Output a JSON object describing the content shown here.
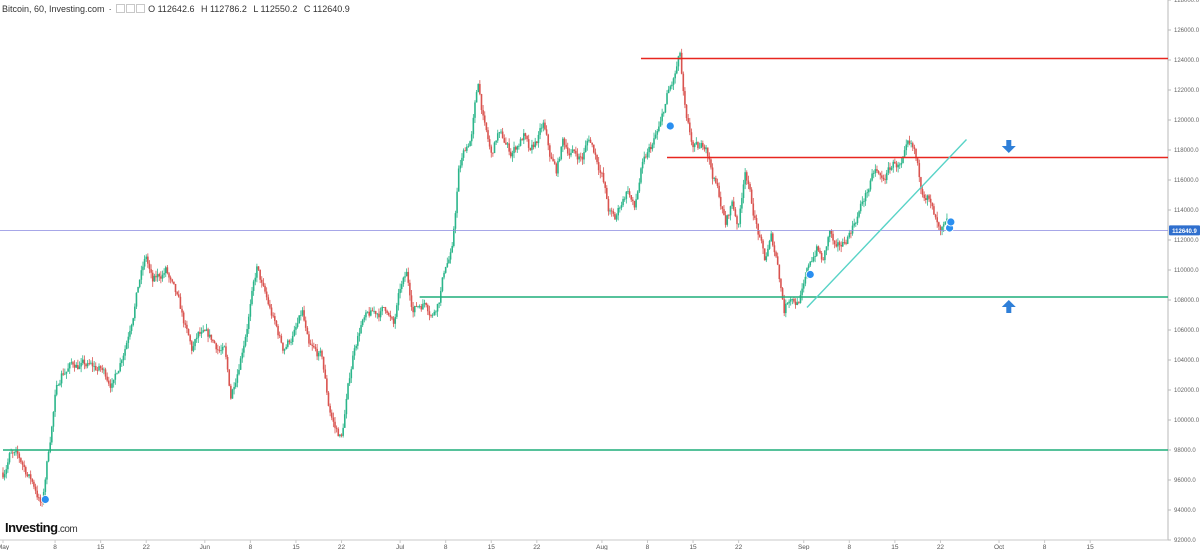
{
  "header": {
    "symbol": "Bitcoin, 60, Investing.com",
    "separator": "·",
    "open": "O 112642.6",
    "high": "H 112786.2",
    "low": "L 112550.2",
    "close": "C 112640.9"
  },
  "logo": {
    "main": "Investing",
    "suffix": ".com"
  },
  "colors": {
    "up": "#2bb58a",
    "down": "#d9534f",
    "resistance": "#e8261f",
    "support": "#1fae7a",
    "trendline": "#58d3c7",
    "price_line": "#8a8ae0",
    "price_badge": "#2f6fce",
    "arrow": "#2f7fd8",
    "marker": "#2a8ff0"
  },
  "chart_data": {
    "type": "candlestick",
    "timeframe": "60",
    "ylim": [
      92000,
      128000
    ],
    "y_ticks": [
      {
        "v": 92000,
        "label": "92000.0"
      },
      {
        "v": 94000,
        "label": "94000.0"
      },
      {
        "v": 96000,
        "label": "96000.0"
      },
      {
        "v": 98000,
        "label": "98000.0"
      },
      {
        "v": 100000,
        "label": "100000.0"
      },
      {
        "v": 102000,
        "label": "102000.0"
      },
      {
        "v": 104000,
        "label": "104000.0"
      },
      {
        "v": 106000,
        "label": "106000.0"
      },
      {
        "v": 108000,
        "label": "108000.0"
      },
      {
        "v": 110000,
        "label": "110000.0"
      },
      {
        "v": 112000,
        "label": "112000.0"
      },
      {
        "v": 114000,
        "label": "114000.0"
      },
      {
        "v": 116000,
        "label": "116000.0"
      },
      {
        "v": 118000,
        "label": "118000.0"
      },
      {
        "v": 120000,
        "label": "120000.0"
      },
      {
        "v": 122000,
        "label": "122000.0"
      },
      {
        "v": 124000,
        "label": "124000.0"
      },
      {
        "v": 126000,
        "label": "126000.0"
      },
      {
        "v": 128000,
        "label": "128000.0"
      }
    ],
    "x_ticks": [
      {
        "d": 0,
        "label": "May"
      },
      {
        "d": 8,
        "label": "8"
      },
      {
        "d": 15,
        "label": "15"
      },
      {
        "d": 22,
        "label": "22"
      },
      {
        "d": 31,
        "label": "Jun"
      },
      {
        "d": 38,
        "label": "8"
      },
      {
        "d": 45,
        "label": "15"
      },
      {
        "d": 52,
        "label": "22"
      },
      {
        "d": 61,
        "label": "Jul"
      },
      {
        "d": 68,
        "label": "8"
      },
      {
        "d": 75,
        "label": "15"
      },
      {
        "d": 82,
        "label": "22"
      },
      {
        "d": 92,
        "label": "Aug"
      },
      {
        "d": 99,
        "label": "8"
      },
      {
        "d": 106,
        "label": "15"
      },
      {
        "d": 113,
        "label": "22"
      },
      {
        "d": 123,
        "label": "Sep"
      },
      {
        "d": 130,
        "label": "8"
      },
      {
        "d": 137,
        "label": "15"
      },
      {
        "d": 144,
        "label": "22"
      },
      {
        "d": 153,
        "label": "Oct"
      },
      {
        "d": 160,
        "label": "8"
      },
      {
        "d": 167,
        "label": "15"
      }
    ],
    "price_path": [
      [
        0,
        96500
      ],
      [
        1,
        97800
      ],
      [
        3,
        97000
      ],
      [
        5,
        95500
      ],
      [
        6,
        94200
      ],
      [
        7,
        98000
      ],
      [
        8,
        101500
      ],
      [
        9,
        103200
      ],
      [
        11,
        103800
      ],
      [
        13,
        103500
      ],
      [
        15,
        103300
      ],
      [
        17,
        102500
      ],
      [
        19,
        105500
      ],
      [
        20,
        107500
      ],
      [
        21,
        109500
      ],
      [
        22,
        110800
      ],
      [
        23,
        109000
      ],
      [
        25,
        110000
      ],
      [
        27,
        107500
      ],
      [
        29,
        104500
      ],
      [
        30,
        105500
      ],
      [
        32,
        105200
      ],
      [
        34,
        104500
      ],
      [
        35,
        101500
      ],
      [
        36,
        103500
      ],
      [
        37,
        105500
      ],
      [
        39,
        110000
      ],
      [
        40,
        108500
      ],
      [
        42,
        106000
      ],
      [
        43,
        104800
      ],
      [
        45,
        106000
      ],
      [
        46,
        107000
      ],
      [
        47,
        104500
      ],
      [
        49,
        104000
      ],
      [
        50,
        101000
      ],
      [
        51,
        99500
      ],
      [
        52,
        98800
      ],
      [
        53,
        102000
      ],
      [
        54,
        105000
      ],
      [
        55,
        106500
      ],
      [
        57,
        107000
      ],
      [
        59,
        107500
      ],
      [
        60,
        106200
      ],
      [
        61,
        108500
      ],
      [
        62,
        109500
      ],
      [
        63,
        107500
      ],
      [
        65,
        108000
      ],
      [
        66,
        107200
      ],
      [
        67,
        108300
      ],
      [
        68,
        110500
      ],
      [
        69,
        111200
      ],
      [
        70,
        116500
      ],
      [
        71,
        118000
      ],
      [
        72,
        119000
      ],
      [
        73,
        122500
      ],
      [
        74,
        119500
      ],
      [
        75,
        117500
      ],
      [
        76,
        119000
      ],
      [
        77,
        118500
      ],
      [
        78,
        117800
      ],
      [
        80,
        119000
      ],
      [
        81,
        117500
      ],
      [
        82,
        118500
      ],
      [
        83,
        119500
      ],
      [
        84,
        117500
      ],
      [
        85,
        116500
      ],
      [
        86,
        118500
      ],
      [
        87,
        118000
      ],
      [
        89,
        117500
      ],
      [
        90,
        118800
      ],
      [
        91,
        117800
      ],
      [
        92,
        116500
      ],
      [
        93,
        114000
      ],
      [
        94,
        113200
      ],
      [
        95,
        114500
      ],
      [
        96,
        115500
      ],
      [
        97,
        114000
      ],
      [
        98,
        116500
      ],
      [
        99,
        117500
      ],
      [
        100,
        118500
      ],
      [
        101,
        119500
      ],
      [
        102,
        121500
      ],
      [
        103,
        122500
      ],
      [
        104,
        124200
      ],
      [
        104.5,
        121500
      ],
      [
        105,
        119500
      ],
      [
        106,
        118000
      ],
      [
        107,
        117800
      ],
      [
        108,
        118500
      ],
      [
        109,
        116500
      ],
      [
        110,
        115000
      ],
      [
        111,
        113000
      ],
      [
        112,
        114500
      ],
      [
        113,
        113000
      ],
      [
        114,
        117000
      ],
      [
        115,
        114500
      ],
      [
        116,
        112500
      ],
      [
        117,
        110500
      ],
      [
        118,
        112000
      ],
      [
        119,
        110500
      ],
      [
        120,
        107500
      ],
      [
        121,
        108500
      ],
      [
        122,
        108000
      ],
      [
        123,
        108700
      ],
      [
        124,
        110500
      ],
      [
        125,
        111500
      ],
      [
        126,
        110500
      ],
      [
        127,
        112500
      ],
      [
        128,
        111000
      ],
      [
        129,
        111500
      ],
      [
        130,
        112500
      ],
      [
        131,
        113500
      ],
      [
        132,
        114500
      ],
      [
        133,
        115500
      ],
      [
        134,
        116500
      ],
      [
        135,
        115800
      ],
      [
        136,
        116500
      ],
      [
        137,
        117200
      ],
      [
        138,
        116800
      ],
      [
        139,
        117800
      ],
      [
        140,
        117500
      ],
      [
        141,
        115500
      ],
      [
        142,
        115200
      ],
      [
        143,
        113500
      ],
      [
        144,
        112000
      ],
      [
        145,
        112640
      ]
    ],
    "lines": [
      {
        "type": "resistance",
        "value": 124100,
        "from_day": 98
      },
      {
        "type": "resistance",
        "value": 117500,
        "from_day": 102
      },
      {
        "type": "support",
        "value": 108200,
        "from_day": 64
      },
      {
        "type": "support",
        "value": 98000,
        "from_day": 0
      },
      {
        "type": "trendline",
        "from": [
          123.5,
          107500
        ],
        "to": [
          148,
          118700
        ]
      }
    ],
    "current_price": {
      "value": 112640.9,
      "label": "112640.9"
    },
    "markers": [
      {
        "d": 6.5,
        "v": 94700
      },
      {
        "d": 102.5,
        "v": 119600
      },
      {
        "d": 124,
        "v": 109700
      },
      {
        "d": 145.4,
        "v": 112800
      },
      {
        "d": 145.6,
        "v": 113200
      }
    ],
    "arrows": [
      {
        "dir": "down",
        "d": 154.5,
        "v": 118200
      },
      {
        "dir": "up",
        "d": 154.5,
        "v": 107600
      }
    ]
  }
}
